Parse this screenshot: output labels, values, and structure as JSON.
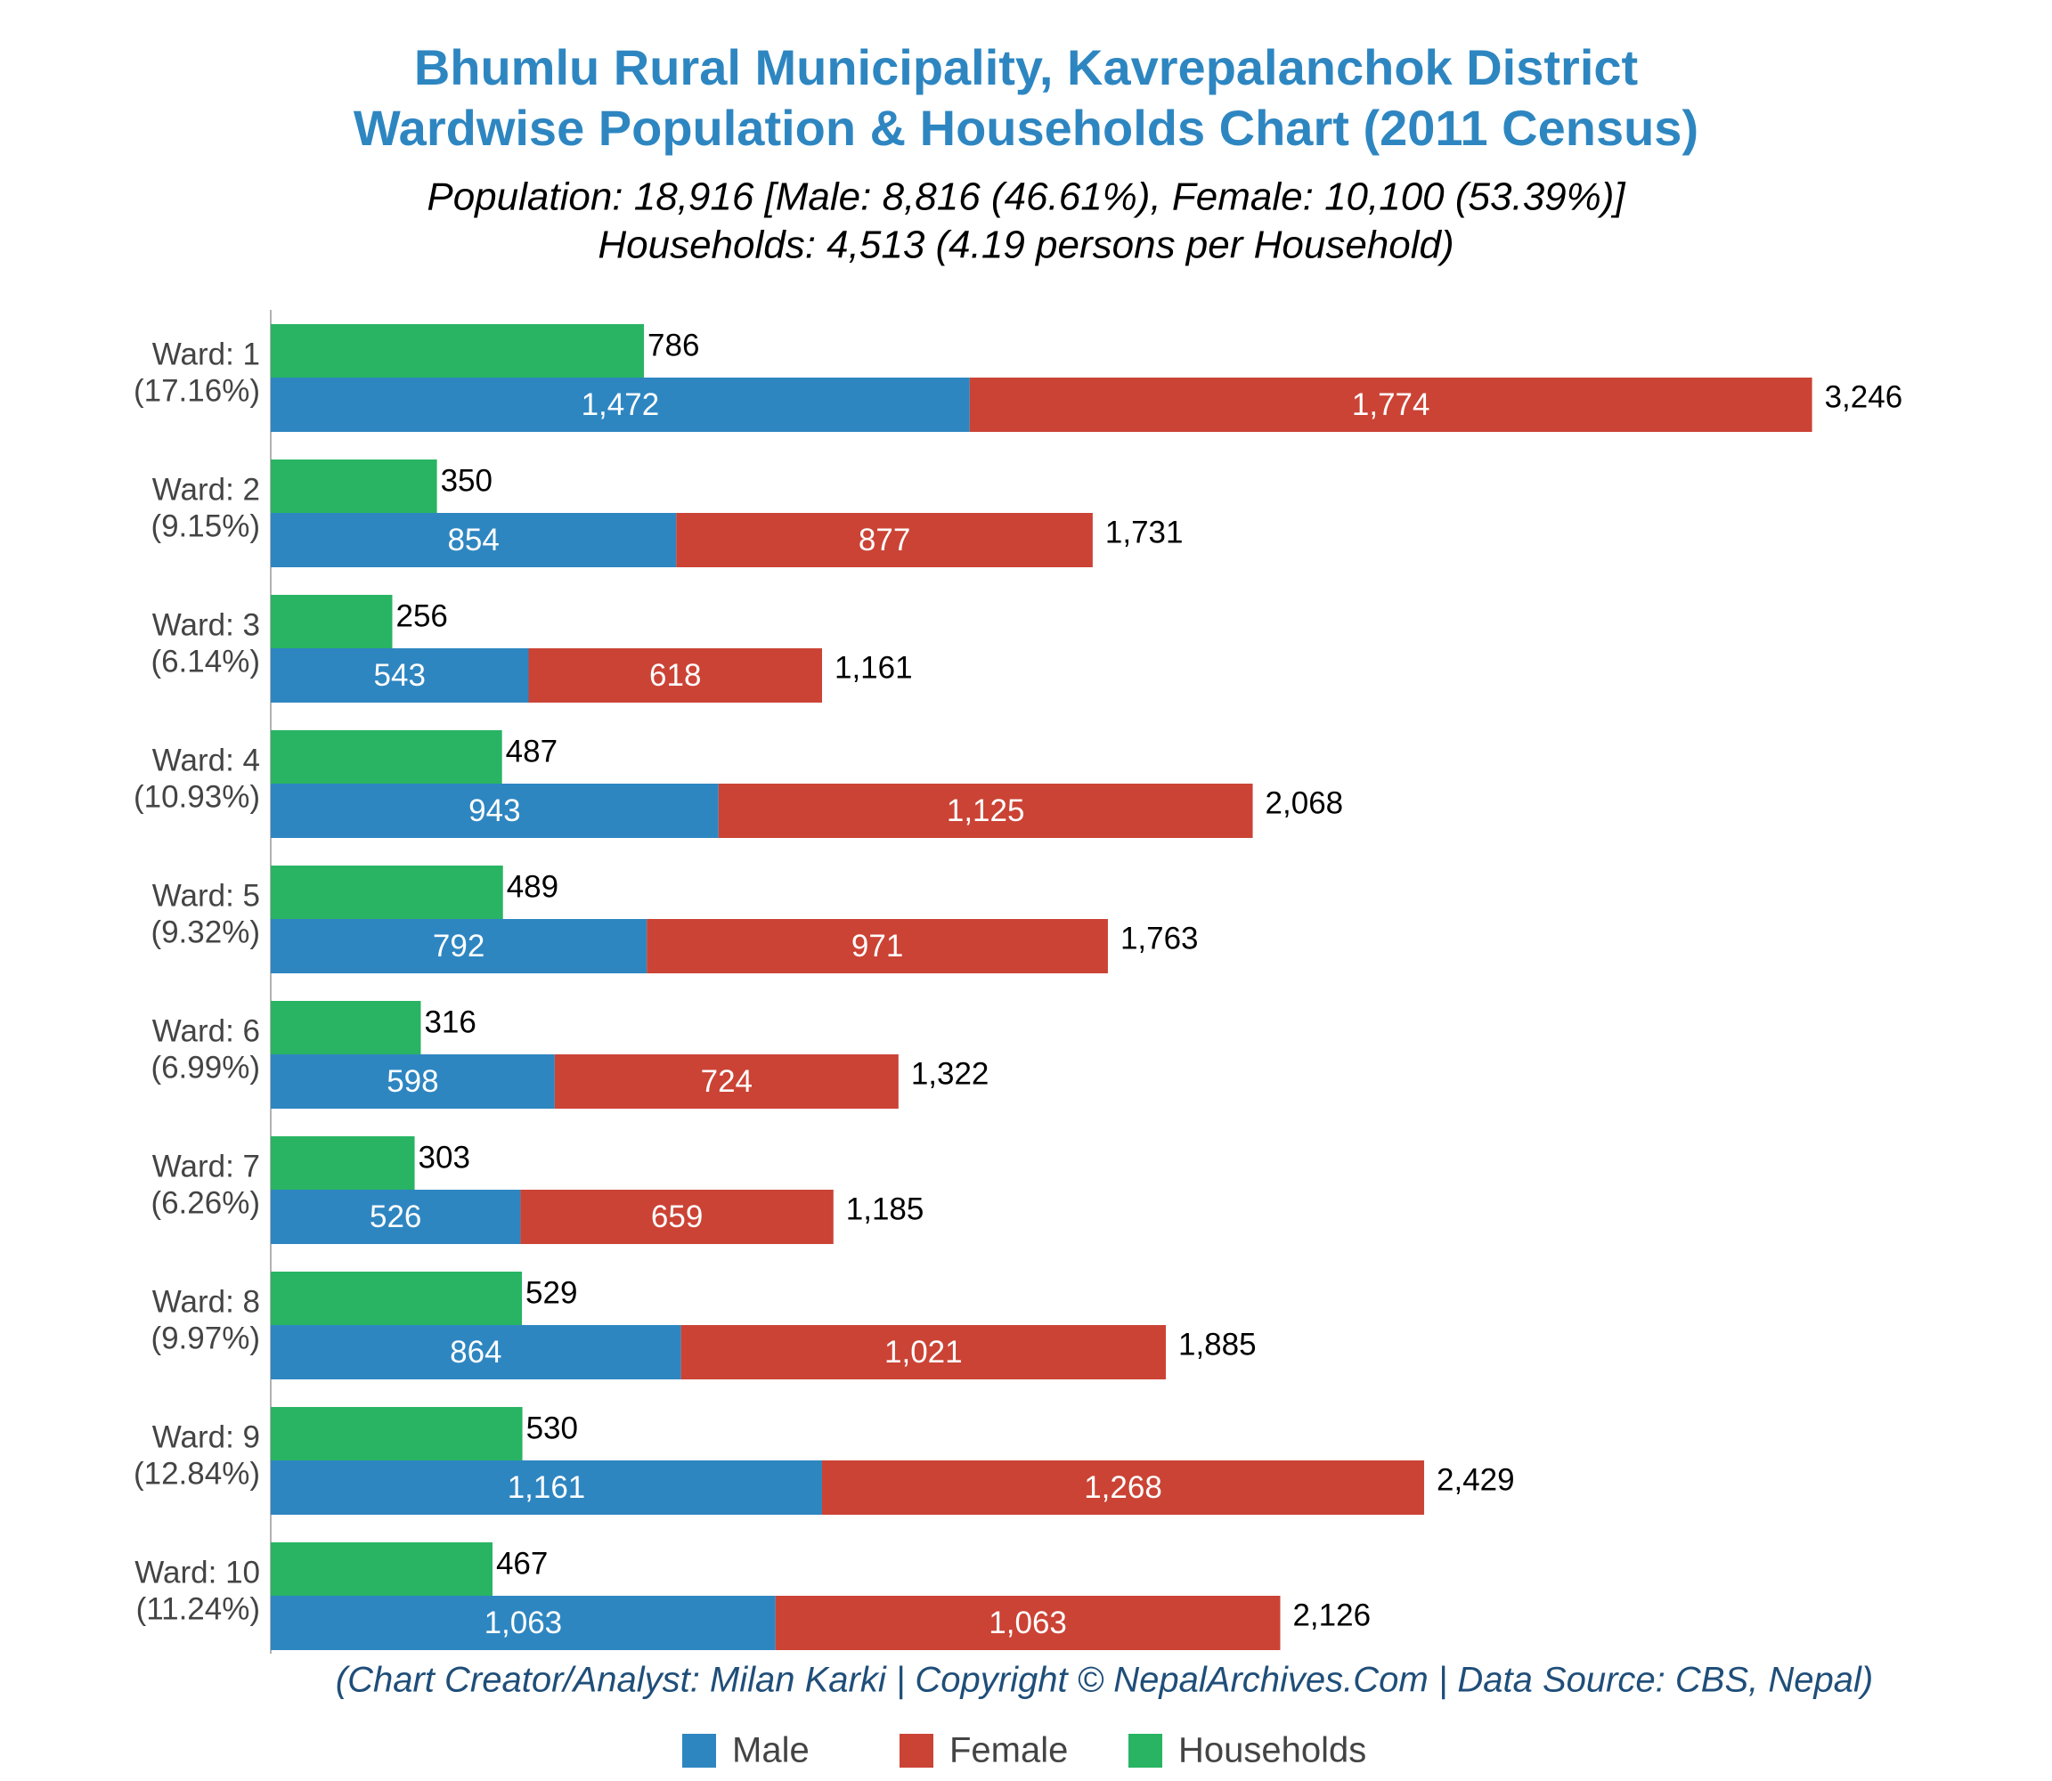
{
  "chart_data": {
    "type": "bar",
    "title": [
      "Bhumlu Rural Municipality, Kavrepalanchok District",
      "Wardwise Population & Households Chart (2011 Census)"
    ],
    "subtitle": [
      "Population: 18,916 [Male: 8,816 (46.61%), Female: 10,100 (53.39%)]",
      "Households: 4,513 (4.19 persons per Household)"
    ],
    "footer": "(Chart Creator/Analyst: Milan Karki | Copyright © NepalArchives.Com | Data Source: CBS, Nepal)",
    "categories": [
      "Ward: 1",
      "Ward: 2",
      "Ward: 3",
      "Ward: 4",
      "Ward: 5",
      "Ward: 6",
      "Ward: 7",
      "Ward: 8",
      "Ward: 9",
      "Ward: 10"
    ],
    "category_shares": [
      "(17.16%)",
      "(9.15%)",
      "(6.14%)",
      "(10.93%)",
      "(9.32%)",
      "(6.99%)",
      "(6.26%)",
      "(9.97%)",
      "(12.84%)",
      "(11.24%)"
    ],
    "series": [
      {
        "name": "Male",
        "color": "#2e86c1",
        "stack": "population",
        "values": [
          1472,
          854,
          543,
          943,
          792,
          598,
          526,
          864,
          1161,
          1063
        ],
        "value_labels": [
          "1,472",
          "854",
          "543",
          "943",
          "792",
          "598",
          "526",
          "864",
          "1,161",
          "1,063"
        ]
      },
      {
        "name": "Female",
        "color": "#cb4335",
        "stack": "population",
        "values": [
          1774,
          877,
          618,
          1125,
          971,
          724,
          659,
          1021,
          1268,
          1063
        ],
        "value_labels": [
          "1,774",
          "877",
          "618",
          "1,125",
          "971",
          "724",
          "659",
          "1,021",
          "1,268",
          "1,063"
        ]
      },
      {
        "name": "Households",
        "color": "#28b463",
        "stack": "households",
        "values": [
          786,
          350,
          256,
          487,
          489,
          316,
          303,
          529,
          530,
          467
        ],
        "value_labels": [
          "786",
          "350",
          "256",
          "487",
          "489",
          "316",
          "303",
          "529",
          "530",
          "467"
        ]
      }
    ],
    "totals": {
      "values": [
        3246,
        1731,
        1161,
        2068,
        1763,
        1322,
        1185,
        1885,
        2429,
        2126
      ],
      "value_labels": [
        "3,246",
        "1,731",
        "1,161",
        "2,068",
        "1,763",
        "1,322",
        "1,185",
        "1,885",
        "2,429",
        "2,126"
      ]
    },
    "xlim": [
      0,
      3650
    ]
  }
}
